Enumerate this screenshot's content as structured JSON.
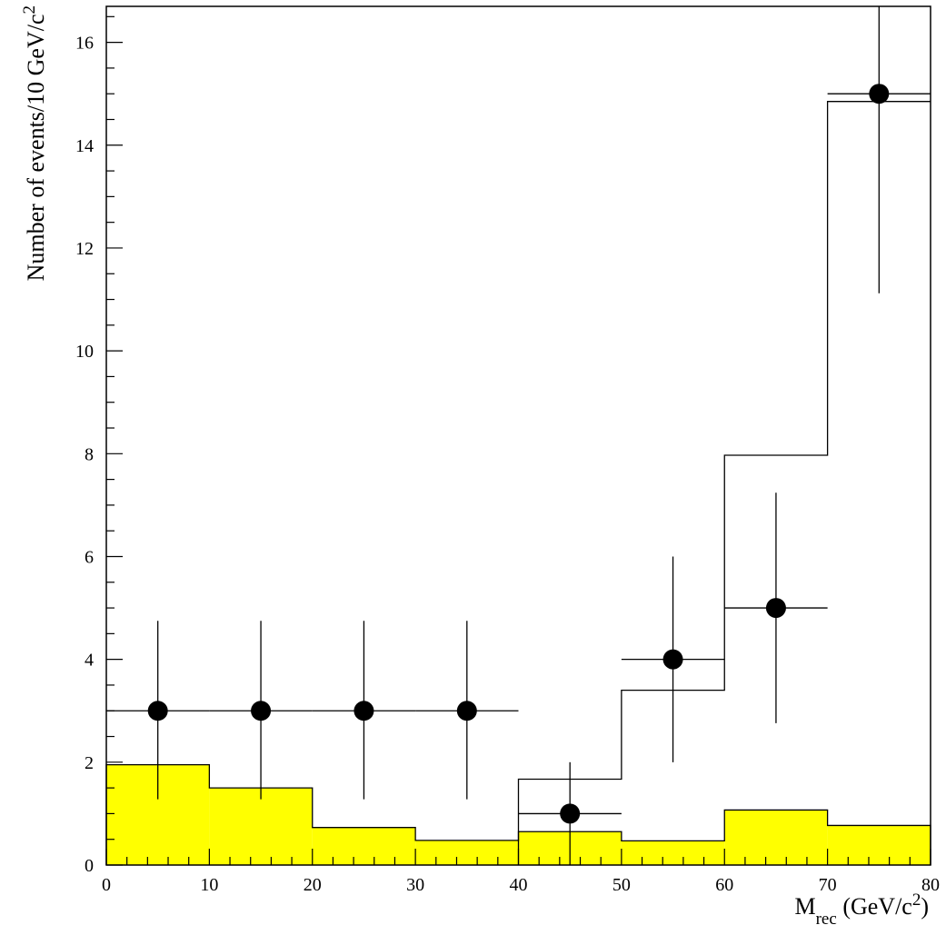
{
  "chart_data": {
    "type": "bar",
    "title": "",
    "xlabel": {
      "main": "M",
      "sub": "rec",
      "rest": " (GeV/c",
      "sup": "2",
      "close": ")"
    },
    "ylabel": {
      "main": "Number of events/10 GeV/c",
      "sup": "2"
    },
    "xlim": [
      0,
      80
    ],
    "ylim": [
      0,
      16.7
    ],
    "x_ticks": [
      0,
      10,
      20,
      30,
      40,
      50,
      60,
      70,
      80
    ],
    "y_ticks": [
      0,
      2,
      4,
      6,
      8,
      10,
      12,
      14,
      16
    ],
    "grid": false,
    "series": [
      {
        "kind": "filled-histogram",
        "color": "#ffff00",
        "bin_edges": [
          0,
          10,
          20,
          30,
          40,
          50,
          60,
          70,
          80
        ],
        "values": [
          1.95,
          1.5,
          0.73,
          0.48,
          0.65,
          0.47,
          1.07,
          0.77
        ]
      },
      {
        "kind": "step-histogram",
        "color": "#000000",
        "bin_edges": [
          40,
          50,
          60,
          70,
          80
        ],
        "values": [
          1.67,
          3.4,
          7.97,
          14.85
        ]
      },
      {
        "kind": "data-points",
        "color": "#000000",
        "points": [
          {
            "x": 5,
            "y": 3,
            "ylow": 1.28,
            "yhigh": 4.75,
            "xlow": 0,
            "xhigh": 10
          },
          {
            "x": 15,
            "y": 3,
            "ylow": 1.28,
            "yhigh": 4.75,
            "xlow": 10,
            "xhigh": 20
          },
          {
            "x": 25,
            "y": 3,
            "ylow": 1.28,
            "yhigh": 4.75,
            "xlow": 20,
            "xhigh": 30
          },
          {
            "x": 35,
            "y": 3,
            "ylow": 1.28,
            "yhigh": 4.75,
            "xlow": 30,
            "xhigh": 40
          },
          {
            "x": 45,
            "y": 1,
            "ylow": 0,
            "yhigh": 2.0,
            "xlow": 40,
            "xhigh": 50
          },
          {
            "x": 55,
            "y": 4,
            "ylow": 2.0,
            "yhigh": 6.0,
            "xlow": 50,
            "xhigh": 60
          },
          {
            "x": 65,
            "y": 5,
            "ylow": 2.76,
            "yhigh": 7.24,
            "xlow": 60,
            "xhigh": 70
          },
          {
            "x": 75,
            "y": 15,
            "ylow": 11.12,
            "yhigh": 16.7,
            "xlow": 70,
            "xhigh": 80
          }
        ]
      }
    ]
  }
}
